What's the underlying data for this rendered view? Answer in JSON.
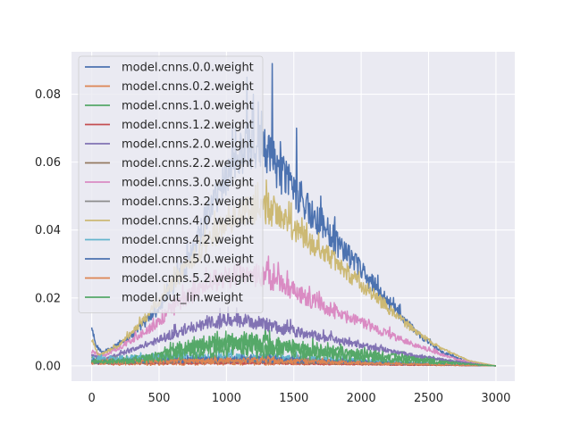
{
  "chart_data": {
    "type": "line",
    "title": "",
    "xlabel": "",
    "ylabel": "",
    "xlim": [
      -150,
      3140
    ],
    "ylim": [
      -0.0045,
      0.0925
    ],
    "xticks": [
      0,
      500,
      1000,
      1500,
      2000,
      2500,
      3000
    ],
    "yticks": [
      0.0,
      0.02,
      0.04,
      0.06,
      0.08
    ],
    "xtick_labels": [
      "0",
      "500",
      "1000",
      "1500",
      "2000",
      "2500",
      "3000"
    ],
    "ytick_labels": [
      "0.00",
      "0.02",
      "0.04",
      "0.06",
      "0.08"
    ],
    "grid": true,
    "legend_position": "upper-left",
    "background": "#eaeaf2",
    "x_range": [
      0,
      3000
    ],
    "series": [
      {
        "name": "model.cnns.0.0.weight",
        "color": "#4c72b0",
        "knots": [
          [
            0,
            0.011
          ],
          [
            30,
            0.006
          ],
          [
            80,
            0.004
          ],
          [
            150,
            0.005
          ],
          [
            300,
            0.009
          ],
          [
            500,
            0.017
          ],
          [
            700,
            0.03
          ],
          [
            900,
            0.048
          ],
          [
            1050,
            0.06
          ],
          [
            1200,
            0.065
          ],
          [
            1300,
            0.063
          ],
          [
            1400,
            0.057
          ],
          [
            1600,
            0.047
          ],
          [
            1800,
            0.037
          ],
          [
            2000,
            0.028
          ],
          [
            2200,
            0.019
          ],
          [
            2400,
            0.01
          ],
          [
            2600,
            0.004
          ],
          [
            2800,
            0.001
          ],
          [
            3000,
            0.0
          ]
        ],
        "noise": 0.07,
        "spikes": [
          [
            1150,
            0.085
          ],
          [
            1200,
            0.08
          ],
          [
            1260,
            0.075
          ],
          [
            1340,
            0.089
          ],
          [
            1400,
            0.066
          ],
          [
            1520,
            0.07
          ],
          [
            1700,
            0.05
          ]
        ]
      },
      {
        "name": "model.cnns.0.2.weight",
        "color": "#dd8452",
        "knots": [
          [
            0,
            0.0018
          ],
          [
            100,
            0.0008
          ],
          [
            800,
            0.0009
          ],
          [
            1200,
            0.0012
          ],
          [
            1600,
            0.001
          ],
          [
            2200,
            0.0006
          ],
          [
            3000,
            0.0
          ]
        ],
        "noise": 0.5,
        "spikes": []
      },
      {
        "name": "model.cnns.1.0.weight",
        "color": "#55a868",
        "knots": [
          [
            0,
            0.002
          ],
          [
            100,
            0.001
          ],
          [
            500,
            0.003
          ],
          [
            800,
            0.006
          ],
          [
            1100,
            0.007
          ],
          [
            1300,
            0.0065
          ],
          [
            1600,
            0.005
          ],
          [
            2000,
            0.0035
          ],
          [
            2400,
            0.002
          ],
          [
            2800,
            0.0008
          ],
          [
            3000,
            0.0
          ]
        ],
        "noise": 0.25,
        "spikes": []
      },
      {
        "name": "model.cnns.1.2.weight",
        "color": "#c44e52",
        "knots": [
          [
            0,
            0.0008
          ],
          [
            500,
            0.0008
          ],
          [
            1000,
            0.001
          ],
          [
            1500,
            0.0007
          ],
          [
            2000,
            0.0004
          ],
          [
            3000,
            0.0
          ]
        ],
        "noise": 0.3,
        "spikes": []
      },
      {
        "name": "model.cnns.2.0.weight",
        "color": "#8172b3",
        "knots": [
          [
            0,
            0.003
          ],
          [
            100,
            0.002
          ],
          [
            400,
            0.006
          ],
          [
            700,
            0.011
          ],
          [
            1000,
            0.0135
          ],
          [
            1200,
            0.013
          ],
          [
            1400,
            0.011
          ],
          [
            1700,
            0.0085
          ],
          [
            2000,
            0.006
          ],
          [
            2400,
            0.003
          ],
          [
            2800,
            0.0008
          ],
          [
            3000,
            0.0
          ]
        ],
        "noise": 0.1,
        "spikes": []
      },
      {
        "name": "model.cnns.2.2.weight",
        "color": "#937860",
        "knots": [
          [
            0,
            0.0012
          ],
          [
            600,
            0.0012
          ],
          [
            1200,
            0.0015
          ],
          [
            1800,
            0.0009
          ],
          [
            3000,
            0.0
          ]
        ],
        "noise": 0.3,
        "spikes": []
      },
      {
        "name": "model.cnns.3.0.weight",
        "color": "#da8bc3",
        "knots": [
          [
            0,
            0.004
          ],
          [
            100,
            0.003
          ],
          [
            400,
            0.01
          ],
          [
            700,
            0.02
          ],
          [
            900,
            0.025
          ],
          [
            1100,
            0.027
          ],
          [
            1300,
            0.026
          ],
          [
            1500,
            0.022
          ],
          [
            1800,
            0.016
          ],
          [
            2100,
            0.011
          ],
          [
            2400,
            0.006
          ],
          [
            2700,
            0.002
          ],
          [
            3000,
            0.0
          ]
        ],
        "noise": 0.08,
        "spikes": [
          [
            1350,
            0.03
          ],
          [
            1450,
            0.028
          ]
        ]
      },
      {
        "name": "model.cnns.3.2.weight",
        "color": "#8c8c8c",
        "knots": [
          [
            0,
            0.0015
          ],
          [
            800,
            0.0018
          ],
          [
            1300,
            0.002
          ],
          [
            2000,
            0.001
          ],
          [
            3000,
            0.0
          ]
        ],
        "noise": 0.3,
        "spikes": []
      },
      {
        "name": "model.cnns.4.0.weight",
        "color": "#ccb974",
        "knots": [
          [
            0,
            0.008
          ],
          [
            50,
            0.003
          ],
          [
            200,
            0.006
          ],
          [
            400,
            0.014
          ],
          [
            600,
            0.024
          ],
          [
            800,
            0.034
          ],
          [
            1000,
            0.042
          ],
          [
            1150,
            0.046
          ],
          [
            1300,
            0.046
          ],
          [
            1450,
            0.042
          ],
          [
            1600,
            0.037
          ],
          [
            1800,
            0.031
          ],
          [
            2000,
            0.024
          ],
          [
            2200,
            0.017
          ],
          [
            2400,
            0.01
          ],
          [
            2600,
            0.005
          ],
          [
            2800,
            0.0015
          ],
          [
            3000,
            0.0
          ]
        ],
        "noise": 0.06,
        "spikes": [
          [
            1230,
            0.054
          ],
          [
            1350,
            0.05
          ],
          [
            1480,
            0.048
          ]
        ]
      },
      {
        "name": "model.cnns.4.2.weight",
        "color": "#64b5cd",
        "knots": [
          [
            0,
            0.002
          ],
          [
            1000,
            0.0025
          ],
          [
            1600,
            0.002
          ],
          [
            2400,
            0.0008
          ],
          [
            3000,
            0.0
          ]
        ],
        "noise": 0.3,
        "spikes": []
      },
      {
        "name": "model.cnns.5.0.weight",
        "color": "#4c72b0",
        "knots": [
          [
            0,
            0.0012
          ],
          [
            600,
            0.0016
          ],
          [
            1200,
            0.002
          ],
          [
            2000,
            0.001
          ],
          [
            3000,
            0.0
          ]
        ],
        "noise": 0.3,
        "spikes": []
      },
      {
        "name": "model.cnns.5.2.weight",
        "color": "#dd8452",
        "knots": [
          [
            0,
            0.001
          ],
          [
            800,
            0.0014
          ],
          [
            1300,
            0.0016
          ],
          [
            2000,
            0.0008
          ],
          [
            3000,
            0.0
          ]
        ],
        "noise": 0.35,
        "spikes": []
      },
      {
        "name": "model.out_lin.weight",
        "color": "#55a868",
        "knots": [
          [
            0,
            0.001
          ],
          [
            300,
            0.0015
          ],
          [
            700,
            0.004
          ],
          [
            1000,
            0.0055
          ],
          [
            1300,
            0.005
          ],
          [
            1700,
            0.0035
          ],
          [
            2200,
            0.002
          ],
          [
            2700,
            0.0007
          ],
          [
            3000,
            0.0
          ]
        ],
        "noise": 0.35,
        "spikes": []
      }
    ]
  }
}
